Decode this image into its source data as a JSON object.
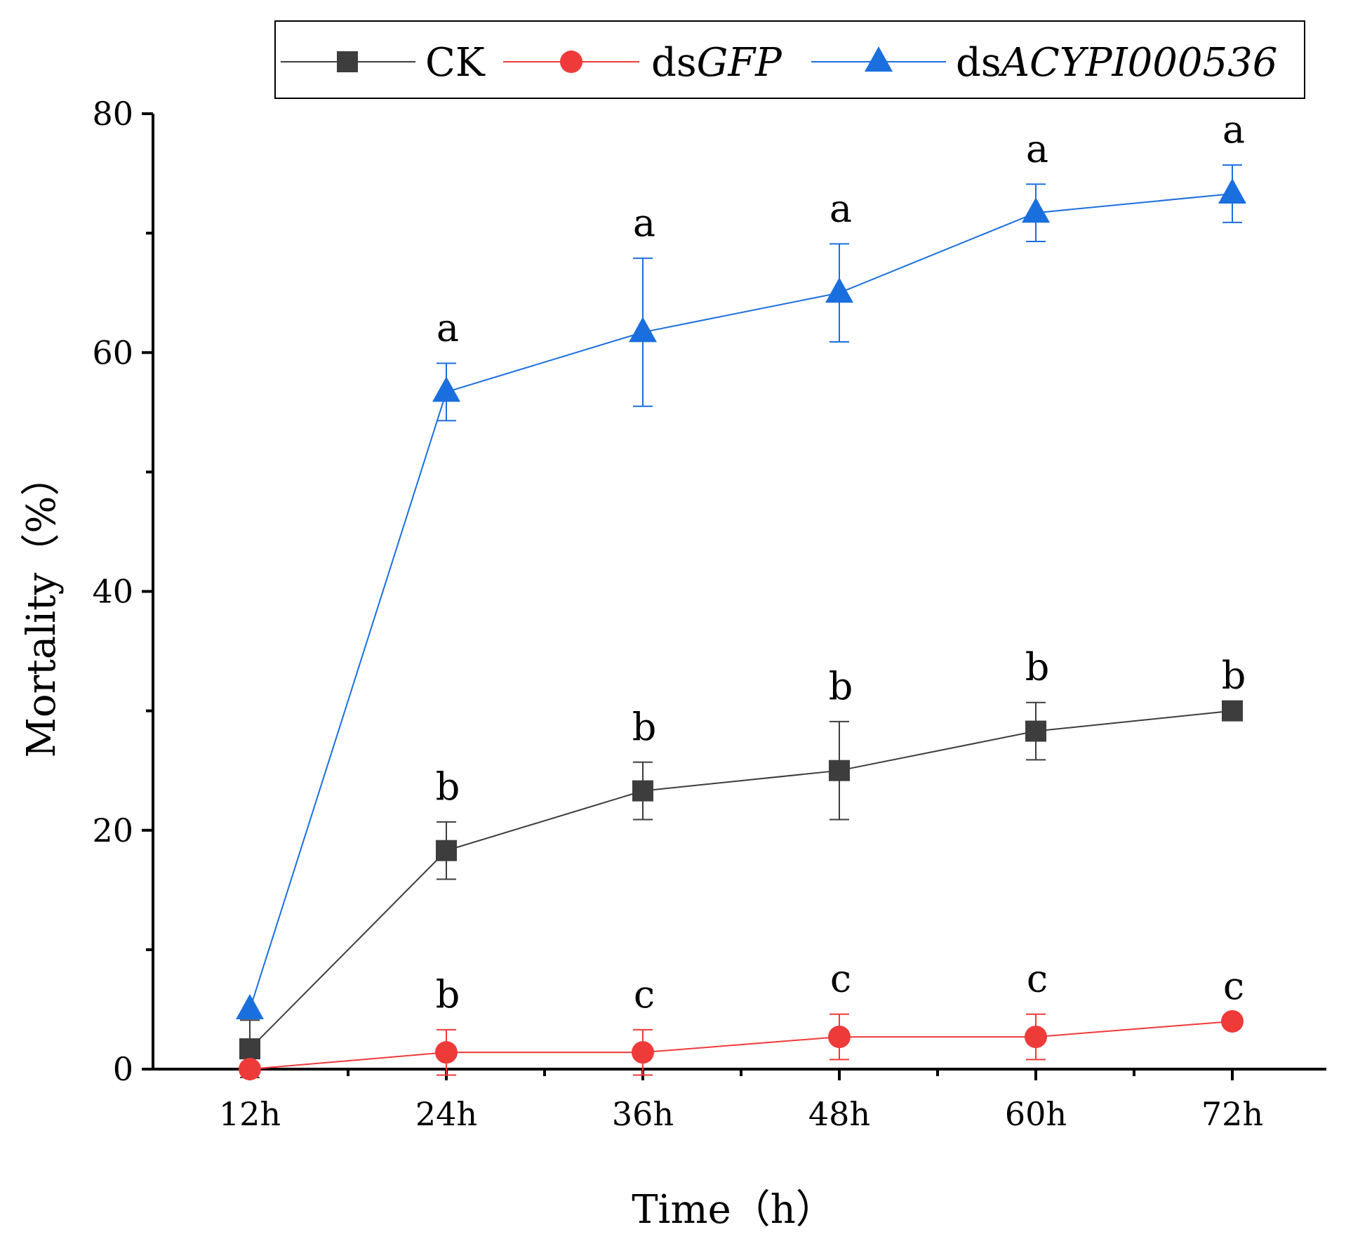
{
  "chart_data": {
    "type": "line",
    "title": "",
    "xlabel": "Time（h）",
    "ylabel": "Mortality（%）",
    "categories": [
      "12h",
      "24h",
      "36h",
      "48h",
      "60h",
      "72h"
    ],
    "ylim": [
      0,
      80
    ],
    "yticks": [
      0,
      20,
      40,
      60,
      80
    ],
    "legend_position": "top",
    "series": [
      {
        "name": "CK",
        "legend_prefix": "CK",
        "legend_italic": "",
        "color": "#3d3d3d",
        "marker": "square",
        "values": [
          1.7,
          18.3,
          23.3,
          25.0,
          28.3,
          30.0
        ],
        "errors": [
          2.4,
          2.4,
          2.4,
          4.1,
          2.4,
          0
        ],
        "letters": [
          "",
          "b",
          "b",
          "b",
          "b",
          "b"
        ]
      },
      {
        "name": "dsGFP",
        "legend_prefix": "ds",
        "legend_italic": "GFP",
        "color": "#ef3a3a",
        "marker": "circle",
        "values": [
          0,
          1.4,
          1.4,
          2.7,
          2.7,
          4.0
        ],
        "errors": [
          0,
          1.9,
          1.9,
          1.9,
          1.9,
          0
        ],
        "letters": [
          "",
          "b",
          "c",
          "c",
          "c",
          "c"
        ]
      },
      {
        "name": "dsACYPI000536",
        "legend_prefix": "ds",
        "legend_italic": "ACYPI000536",
        "color": "#1a6fdf",
        "marker": "triangle",
        "values": [
          5.0,
          56.7,
          61.7,
          65.0,
          71.7,
          73.3
        ],
        "errors": [
          0,
          2.4,
          6.2,
          4.1,
          2.4,
          2.4
        ],
        "letters": [
          "",
          "a",
          "a",
          "a",
          "a",
          "a"
        ]
      }
    ]
  }
}
